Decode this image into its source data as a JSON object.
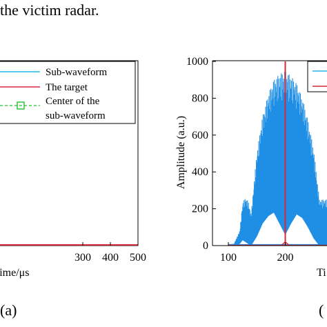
{
  "caption": "the victim radar.",
  "panel_a_label": "(a)",
  "panel_b_label": "(",
  "colors": {
    "subwaveform": "#22b8e8",
    "target": "#d4283c",
    "center": "#22c22a",
    "signal_fill": "#1f8fe6"
  },
  "chart_data": [
    {
      "type": "line",
      "panel": "a",
      "xlabel": "Time/μs",
      "ylabel": "",
      "xlim": [
        0,
        500
      ],
      "x_ticks": [
        "300",
        "400",
        "500"
      ],
      "x_tick_values": [
        300,
        400,
        500
      ],
      "legend_position": "top-right",
      "legend": [
        {
          "label": "Sub-waveform",
          "style": "solid",
          "color": "#22b8e8"
        },
        {
          "label": "The target",
          "style": "solid",
          "color": "#d4283c"
        },
        {
          "label": "Center of the",
          "label2": "sub-waveform",
          "style": "dashed-square",
          "color": "#22c22a"
        }
      ],
      "series": [
        {
          "name": "Sub-waveform",
          "x": [
            0,
            500
          ],
          "y": [
            0,
            0
          ]
        },
        {
          "name": "The target",
          "x": [
            0,
            500
          ],
          "y": [
            0,
            0
          ]
        }
      ]
    },
    {
      "type": "area",
      "panel": "b",
      "xlabel": "Ti",
      "ylabel": "Amplitude (a.u.)",
      "xlim": [
        80,
        330
      ],
      "ylim": [
        0,
        1000
      ],
      "x_ticks": [
        "100",
        "200"
      ],
      "x_tick_values": [
        100,
        200
      ],
      "y_ticks": [
        "0",
        "200",
        "400",
        "600",
        "800",
        "1000"
      ],
      "y_tick_values": [
        0,
        200,
        400,
        600,
        800,
        1000
      ],
      "legend_position": "top-right",
      "target_x": 200,
      "envelope": {
        "x": [
          100,
          110,
          120,
          125,
          130,
          135,
          140,
          150,
          160,
          170,
          180,
          190,
          200,
          210,
          220,
          230,
          240,
          250,
          260
        ],
        "upper": [
          5,
          10,
          80,
          230,
          260,
          240,
          170,
          500,
          700,
          820,
          900,
          930,
          950,
          920,
          880,
          800,
          680,
          520,
          250
        ],
        "lower": [
          0,
          0,
          10,
          30,
          20,
          10,
          0,
          50,
          120,
          160,
          180,
          120,
          60,
          120,
          170,
          150,
          100,
          40,
          0
        ]
      }
    }
  ]
}
